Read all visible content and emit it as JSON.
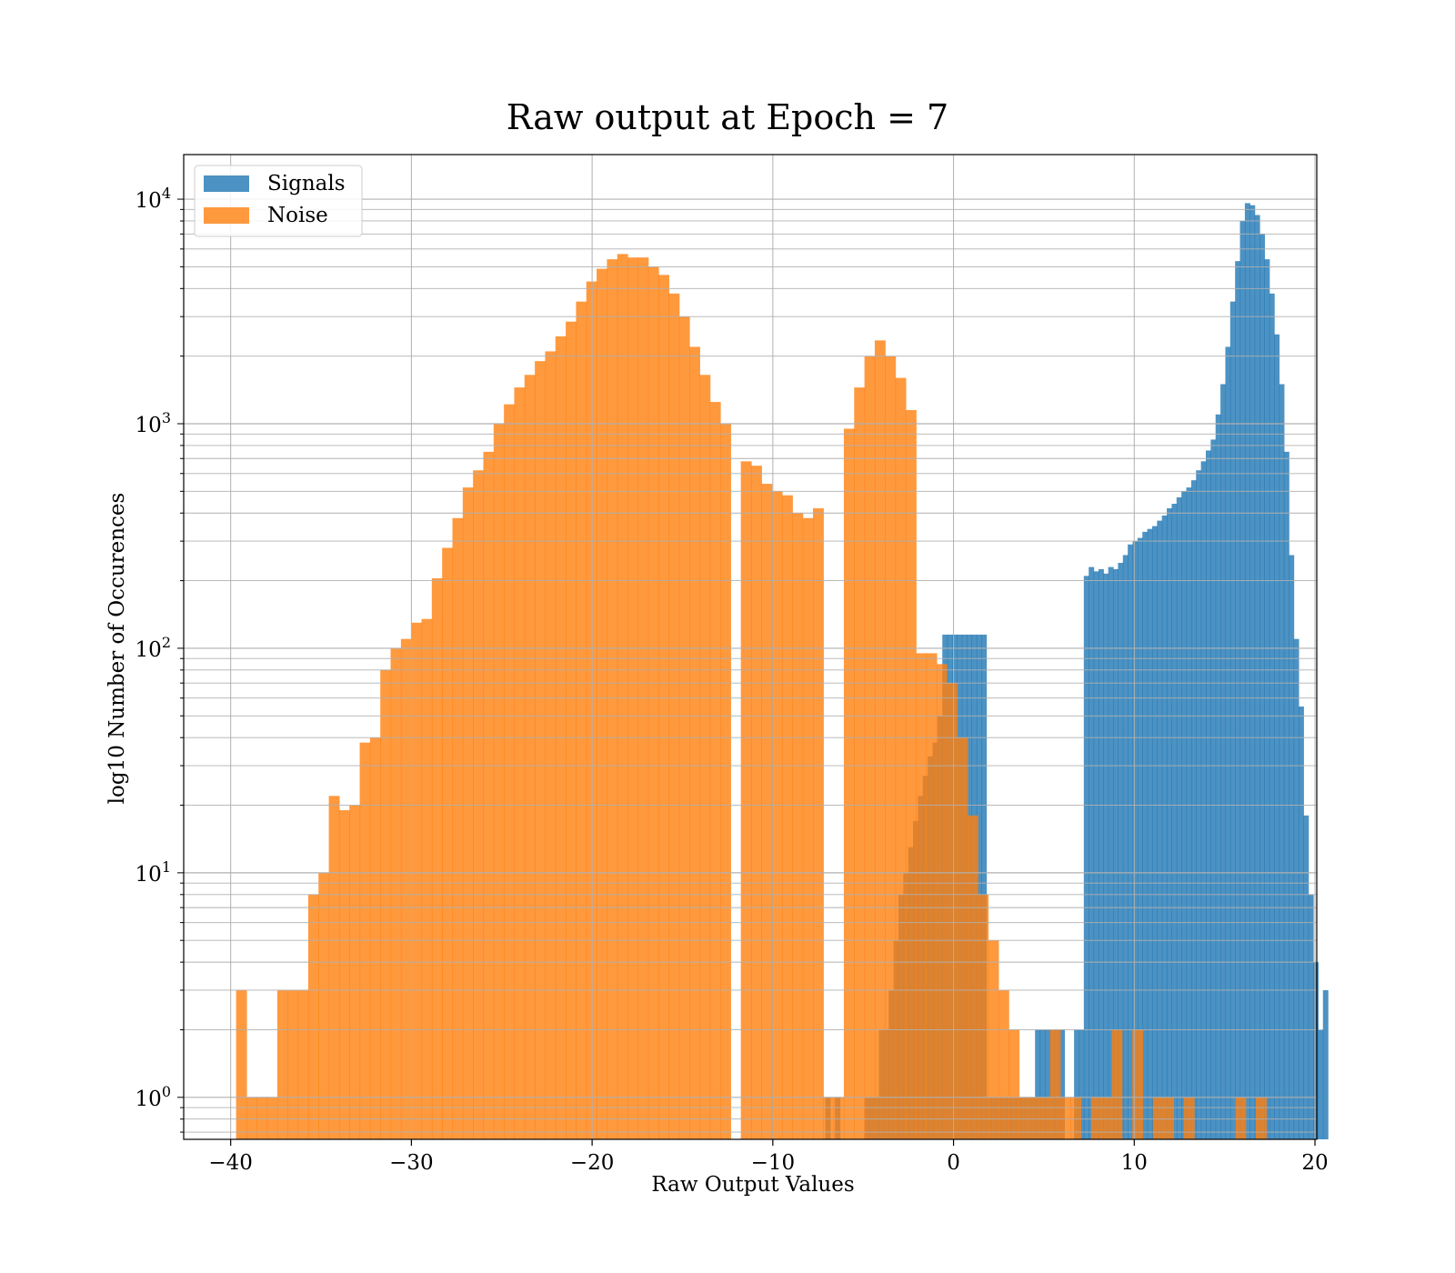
{
  "chart_data": {
    "type": "bar",
    "title": "Raw output at Epoch = 7",
    "xlabel": "Raw Output Values",
    "ylabel": "log10 Number of Occurences",
    "xlim": [
      -42.6,
      20.1
    ],
    "ylim": [
      0.65,
      15800
    ],
    "yscale": "log",
    "x_ticks": [
      -40,
      -30,
      -20,
      -10,
      0,
      10,
      20
    ],
    "x_tick_labels": [
      "−40",
      "−30",
      "−20",
      "−10",
      "0",
      "10",
      "20"
    ],
    "y_ticks": [
      {
        "value": 1,
        "base": "10",
        "exp": "0"
      },
      {
        "value": 10,
        "base": "10",
        "exp": "1"
      },
      {
        "value": 100,
        "base": "10",
        "exp": "2"
      },
      {
        "value": 1000,
        "base": "10",
        "exp": "3"
      },
      {
        "value": 10000,
        "base": "10",
        "exp": "4"
      }
    ],
    "grid": true,
    "legend_position": "top-left",
    "series": [
      {
        "name": "Signals",
        "color": "#1f77b4",
        "alpha": 0.8,
        "bin_start": -7.1,
        "bin_width": 0.27,
        "values": [
          1,
          0,
          1,
          0,
          0,
          0,
          0,
          0,
          1,
          1,
          1,
          2,
          2,
          3,
          5,
          8,
          10,
          13,
          17,
          22,
          27,
          33,
          38,
          50,
          60,
          80,
          100,
          110,
          125,
          140,
          150,
          145,
          160,
          155,
          170,
          150,
          165,
          175,
          180,
          160,
          175,
          180,
          170,
          190,
          185,
          175,
          195,
          180,
          200,
          190,
          230,
          230,
          220,
          210,
          230,
          220,
          225,
          215,
          230,
          225,
          240,
          260,
          290,
          300,
          310,
          330,
          340,
          350,
          370,
          390,
          420,
          440,
          470,
          500,
          520,
          560,
          620,
          680,
          760,
          850,
          1100,
          1500,
          2200,
          3500,
          5300,
          8000,
          9600,
          9400,
          8500,
          7000,
          5400,
          3800,
          2500,
          1500,
          750,
          260,
          110,
          55,
          18,
          8,
          4,
          2,
          3
        ],
        "overrides": [
          [
            -0.5,
            1.9,
            115
          ],
          [
            1.9,
            4.4,
            1
          ],
          [
            4.4,
            6.1,
            2
          ],
          [
            6.1,
            6.6,
            0
          ],
          [
            6.6,
            7.3,
            2
          ]
        ]
      },
      {
        "name": "Noise",
        "color": "#ff7f0e",
        "alpha": 0.8,
        "bin_start": -39.7,
        "bin_width": 0.57,
        "values": [
          3,
          1,
          1,
          1,
          3,
          3,
          3,
          8,
          10,
          22,
          19,
          20,
          38,
          40,
          80,
          100,
          110,
          130,
          135,
          205,
          280,
          380,
          520,
          620,
          750,
          1000,
          1220,
          1450,
          1650,
          1900,
          2100,
          2450,
          2850,
          3500,
          4300,
          4900,
          5400,
          5700,
          5500,
          5500,
          5000,
          4600,
          3800,
          3000,
          2200,
          1650,
          1250,
          1000,
          850,
          680,
          650,
          540,
          500,
          480,
          400,
          380,
          420,
          390,
          540,
          950,
          1450,
          2000,
          2350,
          2000,
          1600,
          1150,
          800,
          560,
          380,
          250,
          180,
          130,
          90,
          60,
          35,
          15,
          10,
          5,
          3,
          2,
          1,
          1,
          1,
          1,
          0,
          0,
          0,
          0,
          0,
          0,
          0,
          0,
          0,
          0,
          0,
          0,
          0,
          0,
          0,
          0,
          0,
          0,
          0,
          0,
          0,
          0,
          0,
          0,
          0
        ],
        "overrides": [
          [
            -12.1,
            -11.9,
            0
          ],
          [
            -7.9,
            -7.7,
            0
          ],
          [
            -7.2,
            -6.9,
            1
          ],
          [
            -6.9,
            -6.6,
            0
          ],
          [
            -6.6,
            -6.3,
            1
          ],
          [
            -2.3,
            -1.8,
            120
          ],
          [
            -1.8,
            -1.2,
            95
          ],
          [
            -1.2,
            -0.6,
            85
          ],
          [
            -0.6,
            0.0,
            70
          ],
          [
            0.0,
            0.8,
            40
          ],
          [
            0.8,
            1.4,
            18
          ],
          [
            1.4,
            2.0,
            8
          ],
          [
            2.0,
            2.6,
            5
          ],
          [
            2.6,
            3.1,
            3
          ],
          [
            3.1,
            3.6,
            2
          ],
          [
            3.6,
            5.5,
            1
          ],
          [
            6.5,
            7.0,
            1
          ],
          [
            7.0,
            7.7,
            0
          ],
          [
            7.7,
            9.0,
            1
          ],
          [
            9.0,
            9.4,
            2
          ],
          [
            9.4,
            9.9,
            0
          ],
          [
            9.9,
            10.4,
            2
          ],
          [
            10.4,
            11.0,
            0
          ],
          [
            11.0,
            12.3,
            1
          ],
          [
            12.3,
            12.8,
            0
          ],
          [
            12.8,
            13.3,
            1
          ],
          [
            13.3,
            15.6,
            0
          ],
          [
            15.6,
            16.1,
            1
          ],
          [
            16.1,
            16.7,
            0
          ],
          [
            16.7,
            17.3,
            1
          ],
          [
            17.3,
            30,
            0
          ]
        ]
      }
    ]
  }
}
